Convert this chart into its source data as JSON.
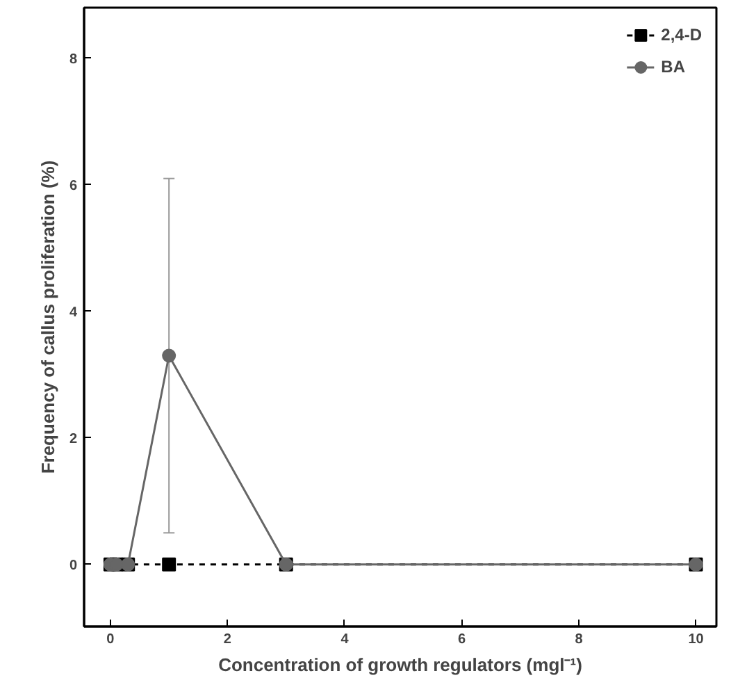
{
  "chart_data": {
    "type": "line",
    "xlabel": "Concentration of growth regulators (mgl⁻¹)",
    "ylabel": "Frequency of callus proliferation (%)",
    "x": [
      0,
      0.1,
      0.3,
      1,
      3,
      10
    ],
    "xlim": [
      -0.45,
      10.35
    ],
    "ylim": [
      -0.98,
      8.8
    ],
    "xticks": [
      0,
      2,
      4,
      6,
      8,
      10
    ],
    "yticks": [
      0,
      2,
      4,
      6,
      8
    ],
    "grid": false,
    "legend": "top right",
    "series": [
      {
        "name": "2,4-D",
        "color": "#000000",
        "values": [
          0,
          0,
          0,
          0,
          0,
          0
        ],
        "marker": "square",
        "line_style": "dashed"
      },
      {
        "name": "BA",
        "color": "#666666",
        "values": [
          0,
          0,
          0,
          3.3,
          0,
          0
        ],
        "marker": "circle",
        "line_style": "solid",
        "errors": [
          null,
          null,
          null,
          [
            0.5,
            6.1
          ],
          null,
          null
        ]
      }
    ]
  }
}
